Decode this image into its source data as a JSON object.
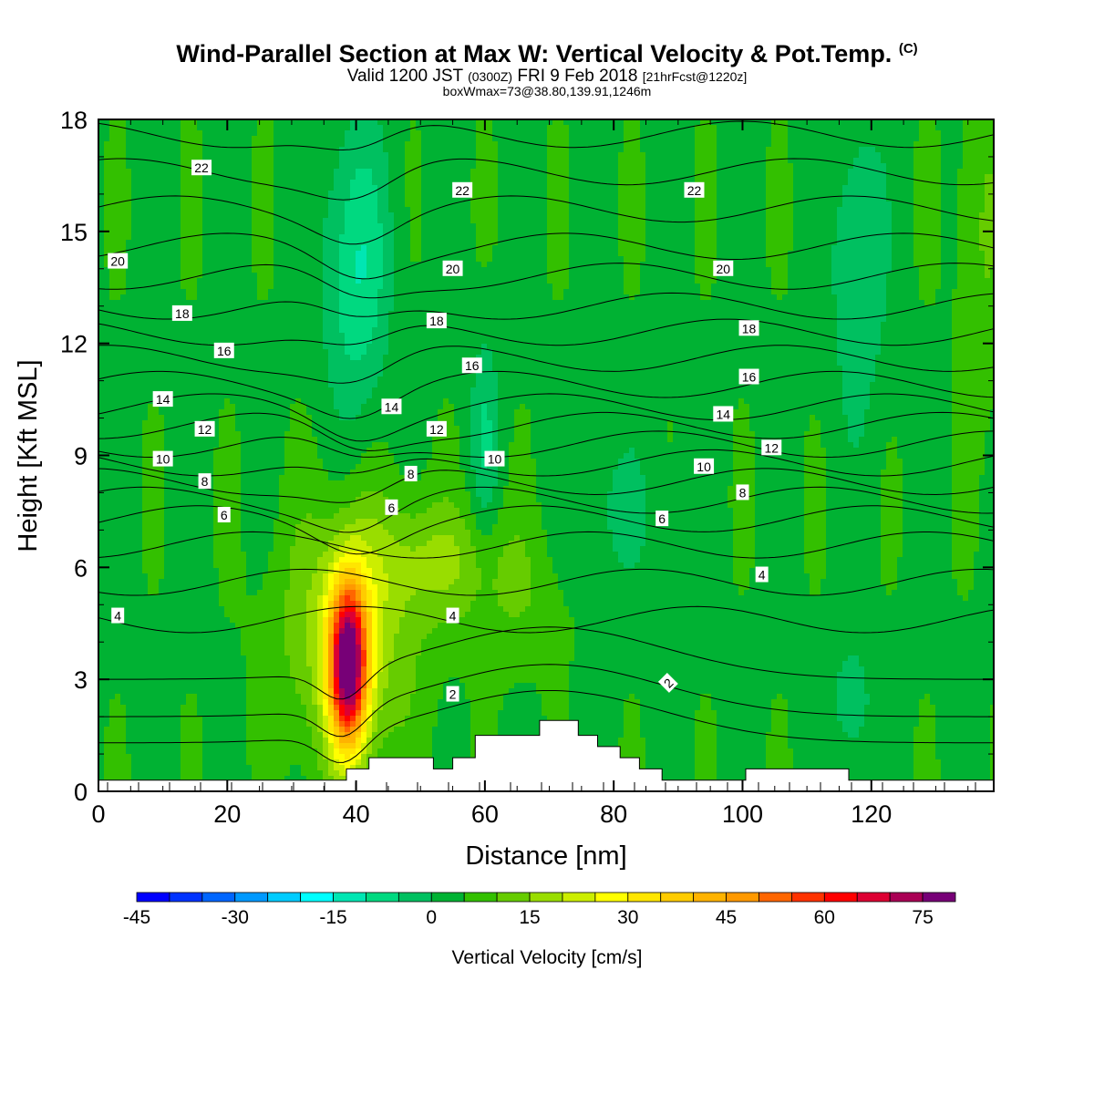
{
  "title": {
    "main": "Wind-Parallel Section at Max W: Vertical Velocity & Pot.Temp.",
    "copyright": "(C)",
    "valid_prefix": "Valid 1200 JST",
    "valid_utc": "(0300Z)",
    "valid_date": "FRI 9 Feb 2018",
    "forecast": "[21hrFcst@1220z]",
    "box_info": "boxWmax=73@38.80,139.91,1246m"
  },
  "chart_data": {
    "type": "heatmap",
    "xlabel": "Distance [nm]",
    "ylabel": "Height [Kft MSL]",
    "xlim": [
      0,
      139
    ],
    "ylim": [
      0,
      18
    ],
    "x_ticks": [
      "0",
      "20",
      "40",
      "60",
      "80",
      "100",
      "120"
    ],
    "y_ticks": [
      "0",
      "3",
      "6",
      "9",
      "12",
      "15",
      "18"
    ],
    "colorbar": {
      "title": "Vertical Velocity [cm/s]",
      "min": -45,
      "max": 80,
      "step": 5,
      "tick_labels": [
        "-45",
        "-30",
        "-15",
        "0",
        "15",
        "30",
        "45",
        "60",
        "75"
      ],
      "colors": [
        "#0000ff",
        "#0033ff",
        "#0066ff",
        "#0099ff",
        "#00ccff",
        "#00ffff",
        "#00e6b3",
        "#00d980",
        "#00c060",
        "#00b233",
        "#33c000",
        "#66cc00",
        "#99dd00",
        "#ccee00",
        "#ffff00",
        "#ffe600",
        "#ffcc00",
        "#ffb300",
        "#ff9900",
        "#ff6600",
        "#ff3300",
        "#ff0000",
        "#dd0033",
        "#aa0055",
        "#770077"
      ]
    },
    "w_max": {
      "value": 73,
      "x": 38.8,
      "z": 3.3
    },
    "contour_labels": [
      {
        "text": "22",
        "x": 16,
        "z": 16.7,
        "rot": 0
      },
      {
        "text": "22",
        "x": 56.5,
        "z": 16.1,
        "rot": 0
      },
      {
        "text": "22",
        "x": 92.5,
        "z": 16.1,
        "rot": 0
      },
      {
        "text": "20",
        "x": 3,
        "z": 14.2,
        "rot": 0
      },
      {
        "text": "20",
        "x": 55,
        "z": 14.0,
        "rot": 0
      },
      {
        "text": "20",
        "x": 97,
        "z": 14.0,
        "rot": 0
      },
      {
        "text": "18",
        "x": 13,
        "z": 12.8,
        "rot": 0
      },
      {
        "text": "18",
        "x": 52.5,
        "z": 12.6,
        "rot": 0
      },
      {
        "text": "18",
        "x": 101,
        "z": 12.4,
        "rot": 0
      },
      {
        "text": "16",
        "x": 19.5,
        "z": 11.8,
        "rot": 0
      },
      {
        "text": "16",
        "x": 58,
        "z": 11.4,
        "rot": 0
      },
      {
        "text": "16",
        "x": 101,
        "z": 11.1,
        "rot": 0
      },
      {
        "text": "14",
        "x": 10,
        "z": 10.5,
        "rot": 0
      },
      {
        "text": "14",
        "x": 45.5,
        "z": 10.3,
        "rot": 0
      },
      {
        "text": "14",
        "x": 97,
        "z": 10.1,
        "rot": 0
      },
      {
        "text": "12",
        "x": 16.5,
        "z": 9.7,
        "rot": 0
      },
      {
        "text": "12",
        "x": 52.5,
        "z": 9.7,
        "rot": 0
      },
      {
        "text": "12",
        "x": 104.5,
        "z": 9.2,
        "rot": 0
      },
      {
        "text": "10",
        "x": 10,
        "z": 8.9,
        "rot": 0
      },
      {
        "text": "10",
        "x": 61.5,
        "z": 8.9,
        "rot": 0
      },
      {
        "text": "10",
        "x": 94,
        "z": 8.7,
        "rot": 0
      },
      {
        "text": "8",
        "x": 16.5,
        "z": 8.3,
        "rot": 0
      },
      {
        "text": "8",
        "x": 48.5,
        "z": 8.5,
        "rot": 0
      },
      {
        "text": "8",
        "x": 100,
        "z": 8.0,
        "rot": 0
      },
      {
        "text": "6",
        "x": 19.5,
        "z": 7.4,
        "rot": 0
      },
      {
        "text": "6",
        "x": 45.5,
        "z": 7.6,
        "rot": 0
      },
      {
        "text": "6",
        "x": 87.5,
        "z": 7.3,
        "rot": 0
      },
      {
        "text": "4",
        "x": 3,
        "z": 4.7,
        "rot": 0
      },
      {
        "text": "4",
        "x": 55,
        "z": 4.7,
        "rot": 0
      },
      {
        "text": "4",
        "x": 103,
        "z": 5.8,
        "rot": 0
      },
      {
        "text": "2",
        "x": 55,
        "z": 2.6,
        "rot": 0
      },
      {
        "text": "2",
        "x": 88.5,
        "z": 2.9,
        "rot": -45
      }
    ],
    "terrain": [
      [
        0,
        0.3
      ],
      [
        38.5,
        0.3
      ],
      [
        38.5,
        0.6
      ],
      [
        42,
        0.6
      ],
      [
        42,
        0.9
      ],
      [
        52,
        0.9
      ],
      [
        52,
        0.6
      ],
      [
        55,
        0.6
      ],
      [
        55,
        0.9
      ],
      [
        58.5,
        0.9
      ],
      [
        58.5,
        1.5
      ],
      [
        68.5,
        1.5
      ],
      [
        68.5,
        1.9
      ],
      [
        74.5,
        1.9
      ],
      [
        74.5,
        1.5
      ],
      [
        77.5,
        1.5
      ],
      [
        77.5,
        1.2
      ],
      [
        81,
        1.2
      ],
      [
        81,
        0.9
      ],
      [
        84,
        0.9
      ],
      [
        84,
        0.6
      ],
      [
        87.5,
        0.6
      ],
      [
        87.5,
        0.3
      ],
      [
        100.5,
        0.3
      ],
      [
        100.5,
        0.6
      ],
      [
        116.5,
        0.6
      ],
      [
        116.5,
        0.3
      ],
      [
        139,
        0.3
      ]
    ]
  },
  "colorbar_title": "Vertical Velocity [cm/s]"
}
